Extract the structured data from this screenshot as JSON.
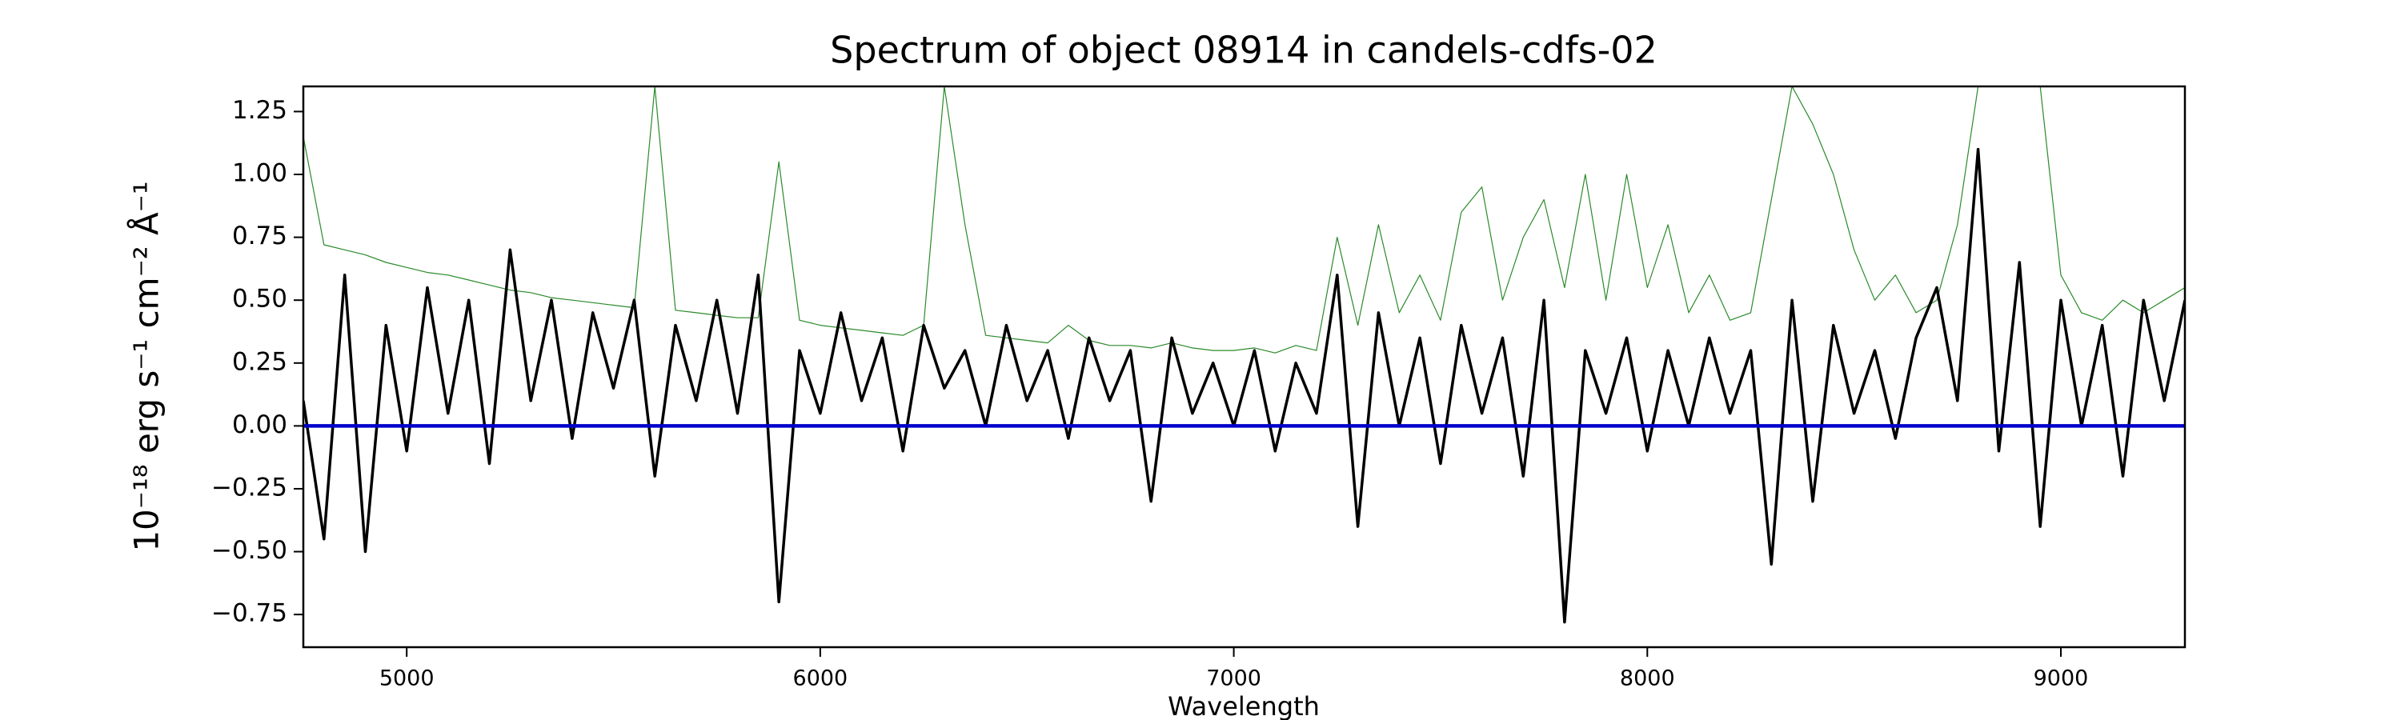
{
  "chart_data": {
    "type": "line",
    "title": "Spectrum of object 08914 in candels-cdfs-02",
    "xlabel": "Wavelength",
    "ylabel": "10⁻¹⁸ erg s⁻¹ cm⁻² Å⁻¹",
    "x": [
      4750,
      4800,
      4850,
      4900,
      4950,
      5000,
      5050,
      5100,
      5150,
      5200,
      5250,
      5300,
      5350,
      5400,
      5450,
      5500,
      5550,
      5600,
      5650,
      5700,
      5750,
      5800,
      5850,
      5900,
      5950,
      6000,
      6050,
      6100,
      6150,
      6200,
      6250,
      6300,
      6350,
      6400,
      6450,
      6500,
      6550,
      6600,
      6650,
      6700,
      6750,
      6800,
      6850,
      6900,
      6950,
      7000,
      7050,
      7100,
      7150,
      7200,
      7250,
      7300,
      7350,
      7400,
      7450,
      7500,
      7550,
      7600,
      7650,
      7700,
      7750,
      7800,
      7850,
      7900,
      7950,
      8000,
      8050,
      8100,
      8150,
      8200,
      8250,
      8300,
      8350,
      8400,
      8450,
      8500,
      8550,
      8600,
      8650,
      8700,
      8750,
      8800,
      8850,
      8900,
      8950,
      9000,
      9050,
      9100,
      9150,
      9200,
      9250,
      9300
    ],
    "series": [
      {
        "color": "#2a8a2a",
        "width": 1.2,
        "values": [
          1.15,
          0.72,
          0.7,
          0.68,
          0.65,
          0.63,
          0.61,
          0.6,
          0.58,
          0.56,
          0.54,
          0.53,
          0.51,
          0.5,
          0.49,
          0.48,
          0.47,
          1.35,
          0.46,
          0.45,
          0.44,
          0.43,
          0.43,
          1.05,
          0.42,
          0.4,
          0.39,
          0.38,
          0.37,
          0.36,
          0.4,
          1.35,
          0.8,
          0.36,
          0.35,
          0.34,
          0.33,
          0.4,
          0.34,
          0.32,
          0.32,
          0.31,
          0.33,
          0.31,
          0.3,
          0.3,
          0.31,
          0.29,
          0.32,
          0.3,
          0.75,
          0.4,
          0.8,
          0.45,
          0.6,
          0.42,
          0.85,
          0.95,
          0.5,
          0.75,
          0.9,
          0.55,
          1.0,
          0.5,
          1.0,
          0.55,
          0.8,
          0.45,
          0.6,
          0.42,
          0.45,
          0.9,
          1.35,
          1.2,
          1.0,
          0.7,
          0.5,
          0.6,
          0.45,
          0.5,
          0.8,
          1.35,
          1.35,
          1.35,
          1.35,
          0.6,
          0.45,
          0.42,
          0.5,
          0.45,
          0.5,
          0.55
        ]
      },
      {
        "color": "#000000",
        "width": 3.5,
        "values": [
          0.1,
          -0.45,
          0.6,
          -0.5,
          0.4,
          -0.1,
          0.55,
          0.05,
          0.5,
          -0.15,
          0.7,
          0.1,
          0.5,
          -0.05,
          0.45,
          0.15,
          0.5,
          -0.2,
          0.4,
          0.1,
          0.5,
          0.05,
          0.6,
          -0.7,
          0.3,
          0.05,
          0.45,
          0.1,
          0.35,
          -0.1,
          0.4,
          0.15,
          0.3,
          0.0,
          0.4,
          0.1,
          0.3,
          -0.05,
          0.35,
          0.1,
          0.3,
          -0.3,
          0.35,
          0.05,
          0.25,
          0.0,
          0.3,
          -0.1,
          0.25,
          0.05,
          0.6,
          -0.4,
          0.45,
          0.0,
          0.35,
          -0.15,
          0.4,
          0.05,
          0.35,
          -0.2,
          0.5,
          -0.78,
          0.3,
          0.05,
          0.35,
          -0.1,
          0.3,
          0.0,
          0.35,
          0.05,
          0.3,
          -0.55,
          0.5,
          -0.3,
          0.4,
          0.05,
          0.3,
          -0.05,
          0.35,
          0.55,
          0.1,
          1.1,
          -0.1,
          0.65,
          -0.4,
          0.5,
          0.0,
          0.4,
          -0.2,
          0.5,
          0.1,
          0.5
        ]
      },
      {
        "color": "#0000cc",
        "width": 4.5,
        "values": [
          0,
          0,
          0,
          0,
          0,
          0,
          0,
          0,
          0,
          0,
          0,
          0,
          0,
          0,
          0,
          0,
          0,
          0,
          0,
          0,
          0,
          0,
          0,
          0,
          0,
          0,
          0,
          0,
          0,
          0,
          0,
          0,
          0,
          0,
          0,
          0,
          0,
          0,
          0,
          0,
          0,
          0,
          0,
          0,
          0,
          0,
          0,
          0,
          0,
          0,
          0,
          0,
          0,
          0,
          0,
          0,
          0,
          0,
          0,
          0,
          0,
          0,
          0,
          0,
          0,
          0,
          0,
          0,
          0,
          0,
          0,
          0,
          0,
          0,
          0,
          0,
          0,
          0,
          0,
          0,
          0,
          0,
          0,
          0,
          0,
          0,
          0,
          0,
          0,
          0,
          0,
          0
        ]
      }
    ],
    "xlim": [
      4750,
      9300
    ],
    "ylim": [
      -0.88,
      1.35
    ],
    "xticks": [
      5000,
      6000,
      7000,
      8000,
      9000
    ],
    "yticks": [
      {
        "value": -0.75,
        "label": "−0.75"
      },
      {
        "value": -0.5,
        "label": "−0.50"
      },
      {
        "value": -0.25,
        "label": "−0.25"
      },
      {
        "value": 0,
        "label": "0.00"
      },
      {
        "value": 0.25,
        "label": "0.25"
      },
      {
        "value": 0.5,
        "label": "0.50"
      },
      {
        "value": 0.75,
        "label": "0.75"
      },
      {
        "value": 1.0,
        "label": "1.00"
      },
      {
        "value": 1.25,
        "label": "1.25"
      }
    ],
    "grid": false
  }
}
